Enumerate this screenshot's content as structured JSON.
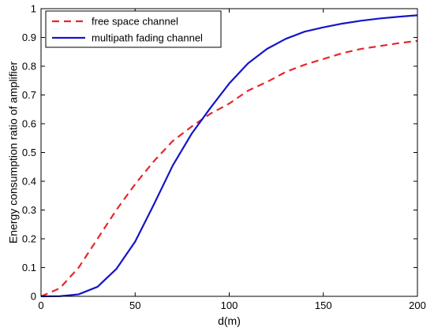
{
  "chart_data": {
    "type": "line",
    "title": "",
    "xlabel": "d(m)",
    "ylabel": "Energy consumption ratio of amplifier",
    "xlim": [
      0,
      200
    ],
    "ylim": [
      0,
      1
    ],
    "xticks": [
      "0",
      "50",
      "100",
      "150",
      "200"
    ],
    "yticks": [
      "0",
      "0.1",
      "0.2",
      "0.3",
      "0.4",
      "0.5",
      "0.6",
      "0.7",
      "0.8",
      "0.9",
      "1"
    ],
    "grid": false,
    "legend_position": "top-left",
    "series": [
      {
        "name": "free space channel",
        "color": "#e8262b",
        "style": "dashed",
        "x": [
          0,
          10,
          20,
          30,
          40,
          50,
          60,
          70,
          80,
          90,
          100,
          110,
          120,
          130,
          140,
          150,
          160,
          170,
          180,
          190,
          200
        ],
        "y": [
          0,
          0.028,
          0.1,
          0.2,
          0.3,
          0.39,
          0.47,
          0.54,
          0.59,
          0.635,
          0.67,
          0.715,
          0.745,
          0.78,
          0.805,
          0.825,
          0.845,
          0.86,
          0.87,
          0.88,
          0.888
        ]
      },
      {
        "name": "multipath fading channel",
        "color": "#1515c8",
        "style": "solid",
        "x": [
          0,
          10,
          20,
          30,
          40,
          50,
          60,
          70,
          80,
          90,
          100,
          110,
          120,
          130,
          140,
          150,
          160,
          170,
          180,
          190,
          200
        ],
        "y": [
          0,
          0.0005,
          0.007,
          0.033,
          0.095,
          0.19,
          0.32,
          0.455,
          0.565,
          0.655,
          0.74,
          0.81,
          0.86,
          0.895,
          0.92,
          0.935,
          0.948,
          0.958,
          0.966,
          0.972,
          0.977
        ]
      }
    ]
  }
}
